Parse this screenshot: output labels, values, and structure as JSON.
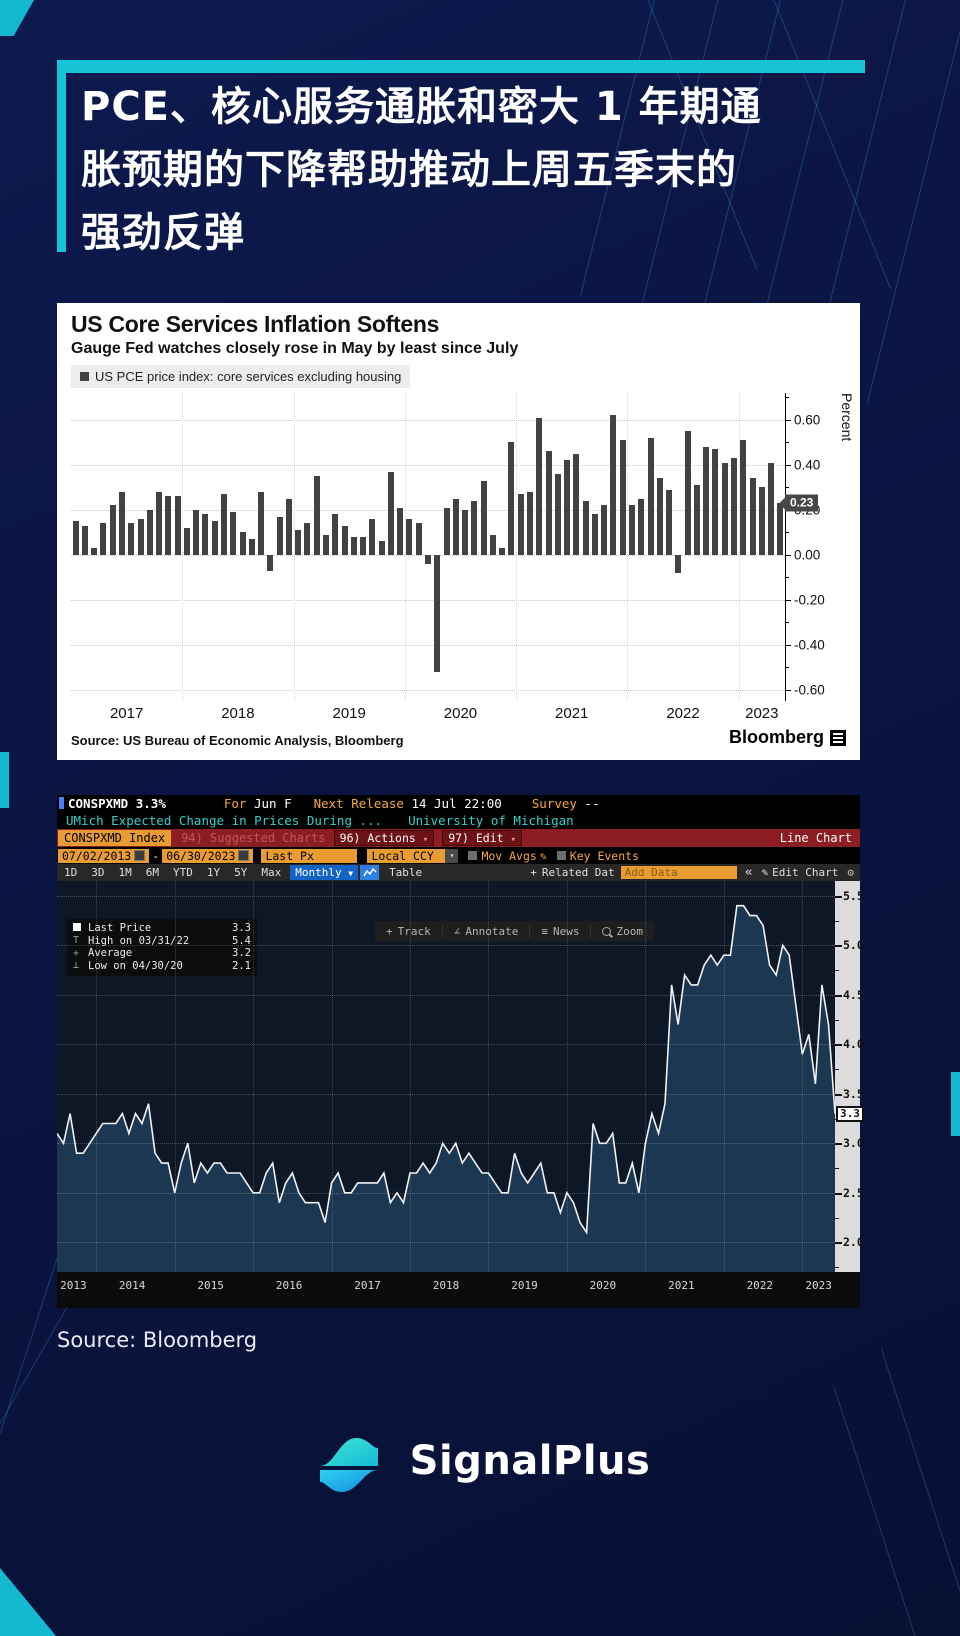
{
  "page": {
    "headline_lines": [
      "PCE、核心服务通胀和密大 1 年期通",
      "胀预期的下降帮助推动上周五季末的",
      "强劲反弹"
    ],
    "source_label": "Source: Bloomberg",
    "brand_name": "SignalPlus",
    "colors": {
      "accent_teal": "#17c3d4",
      "page_bg": "#0a1441"
    }
  },
  "chart1": {
    "title": "US Core Services Inflation Softens",
    "subtitle": "Gauge Fed watches closely rose in May by least since July",
    "legend": "US PCE price index: core services excluding housing",
    "ylabel": "Percent",
    "last_value_label": "0.23",
    "source": "Source: US Bureau of Economic Analysis, Bloomberg",
    "brand": "Bloomberg"
  },
  "terminal": {
    "header": {
      "ticker": "CONSPXMD",
      "last": "3.3%",
      "for_label": "For",
      "for_value": "Jun F",
      "next_release_label": "Next Release",
      "next_release_value": "14 Jul 22:00",
      "survey_label": "Survey",
      "survey_value": "--",
      "description": "UMich Expected Change in Prices During ...",
      "source_org": "University of Michigan"
    },
    "menubar": {
      "security": "CONSPXMD Index",
      "suggested": "94) Suggested Charts",
      "actions": "96) Actions",
      "edit": "97) Edit",
      "chart_type": "Line Chart"
    },
    "fields": {
      "date_from": "07/02/2013",
      "date_sep": "-",
      "date_to": "06/30/2023",
      "price_field": "Last Px",
      "currency": "Local CCY",
      "mov_avgs": "Mov Avgs",
      "key_events": "Key Events"
    },
    "periods": [
      "1D",
      "3D",
      "1M",
      "6M",
      "YTD",
      "1Y",
      "5Y",
      "Max"
    ],
    "frequency": "Monthly",
    "table_label": "Table",
    "related_data_label": "Related Dat",
    "add_data_placeholder": "Add Data",
    "collapse_label": "«",
    "edit_chart_label": "Edit Chart",
    "tools": [
      "Track",
      "Annotate",
      "News",
      "Zoom"
    ],
    "legend": [
      {
        "label": "Last Price",
        "value": "3.3"
      },
      {
        "label": "High on 03/31/22",
        "value": "5.4"
      },
      {
        "label": "Average",
        "value": "3.2"
      },
      {
        "label": "Low on 04/30/20",
        "value": "2.1"
      }
    ],
    "last_price_badge": "3.3"
  },
  "chart_data": [
    {
      "type": "bar",
      "title": "US Core Services Inflation Softens",
      "subtitle": "Gauge Fed watches closely rose in May by least since July",
      "series_name": "US PCE price index: core services excluding housing",
      "x_unit": "month",
      "start": "2017-01",
      "end": "2023-05",
      "ylabel": "Percent",
      "ylim": [
        -0.65,
        0.72
      ],
      "yticks": [
        0.6,
        0.4,
        0.2,
        0.0,
        -0.2,
        -0.4,
        -0.6
      ],
      "ytick_labels": [
        "0.60",
        "0.40",
        "0.20",
        "0.00",
        "-0.20",
        "-0.40",
        "-0.60"
      ],
      "last_value": 0.23,
      "bar_color": "#424242",
      "values": [
        0.15,
        0.13,
        0.03,
        0.14,
        0.22,
        0.28,
        0.14,
        0.16,
        0.2,
        0.28,
        0.26,
        0.26,
        0.12,
        0.2,
        0.18,
        0.15,
        0.27,
        0.19,
        0.1,
        0.07,
        0.28,
        -0.07,
        0.17,
        0.25,
        0.11,
        0.14,
        0.35,
        0.09,
        0.18,
        0.13,
        0.08,
        0.08,
        0.16,
        0.06,
        0.37,
        0.21,
        0.16,
        0.14,
        -0.04,
        -0.52,
        0.21,
        0.25,
        0.2,
        0.24,
        0.33,
        0.09,
        0.03,
        0.5,
        0.27,
        0.28,
        0.61,
        0.46,
        0.36,
        0.42,
        0.45,
        0.24,
        0.18,
        0.22,
        0.62,
        0.51,
        0.22,
        0.25,
        0.52,
        0.34,
        0.29,
        -0.08,
        0.55,
        0.31,
        0.48,
        0.47,
        0.41,
        0.43,
        0.51,
        0.34,
        0.3,
        0.41,
        0.23
      ]
    },
    {
      "type": "line",
      "title": "CONSPXMD Index — UMich Expected Change in Prices During Next Year",
      "x_unit": "month",
      "start": "2013-07",
      "end": "2023-06",
      "ylim": [
        1.7,
        5.65
      ],
      "yticks": [
        5.5,
        5.0,
        4.5,
        4.0,
        3.5,
        3.0,
        2.5,
        2.0
      ],
      "ytick_labels": [
        "5.5",
        "5.0",
        "4.5",
        "4.0",
        "3.5",
        "3.0",
        "2.5",
        "2.0"
      ],
      "last": 3.3,
      "high": 5.4,
      "average": 3.2,
      "low": 2.1,
      "line_color": "#f2f2f2",
      "fill_color": "#1b3752",
      "values": [
        3.1,
        3.0,
        3.3,
        2.9,
        2.9,
        3.0,
        3.1,
        3.2,
        3.2,
        3.2,
        3.3,
        3.1,
        3.3,
        3.2,
        3.4,
        2.9,
        2.8,
        2.8,
        2.5,
        2.8,
        3.0,
        2.6,
        2.8,
        2.7,
        2.8,
        2.8,
        2.7,
        2.7,
        2.7,
        2.6,
        2.5,
        2.5,
        2.7,
        2.8,
        2.4,
        2.6,
        2.7,
        2.5,
        2.4,
        2.4,
        2.4,
        2.2,
        2.6,
        2.7,
        2.5,
        2.5,
        2.6,
        2.6,
        2.6,
        2.6,
        2.7,
        2.4,
        2.5,
        2.4,
        2.7,
        2.7,
        2.8,
        2.7,
        2.8,
        3.0,
        2.9,
        3.0,
        2.8,
        2.9,
        2.8,
        2.7,
        2.7,
        2.6,
        2.5,
        2.5,
        2.9,
        2.7,
        2.6,
        2.7,
        2.8,
        2.5,
        2.5,
        2.3,
        2.5,
        2.4,
        2.2,
        2.1,
        3.2,
        3.0,
        3.0,
        3.1,
        2.6,
        2.6,
        2.8,
        2.5,
        3.0,
        3.3,
        3.1,
        3.4,
        4.6,
        4.2,
        4.7,
        4.6,
        4.6,
        4.8,
        4.9,
        4.8,
        4.9,
        4.9,
        5.4,
        5.4,
        5.3,
        5.3,
        5.2,
        4.8,
        4.7,
        5.0,
        4.9,
        4.4,
        3.9,
        4.1,
        3.6,
        4.6,
        4.2,
        3.3
      ]
    }
  ]
}
